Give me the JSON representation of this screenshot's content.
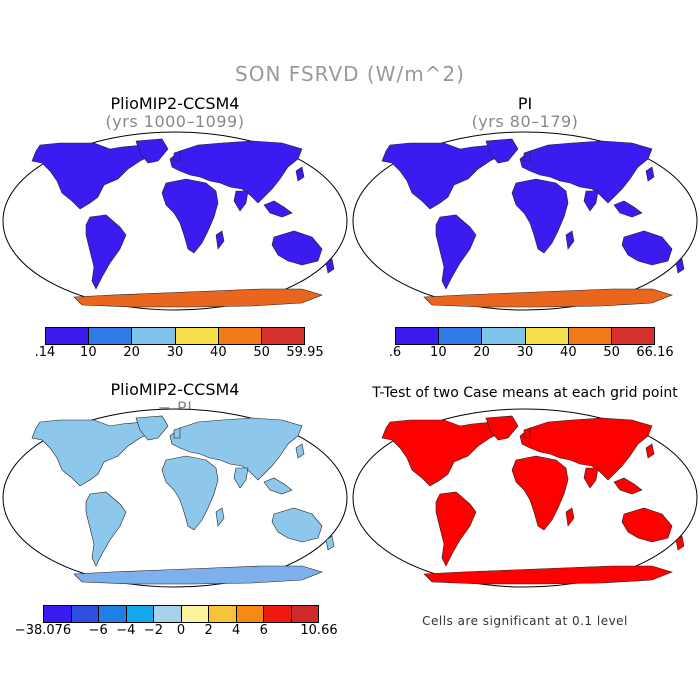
{
  "figure": {
    "title": "SON FSRVD (W/m^2)"
  },
  "panels": [
    {
      "title": "PlioMIP2-CCSM4",
      "subtitle": "(yrs 1000–1099)",
      "land_color": "#3b1cf0",
      "antarctic_color": "#e8661e",
      "colorbar": {
        "colors": [
          "#3b1cf0",
          "#2f7be8",
          "#7fc2ea",
          "#f7e04b",
          "#f07c18",
          "#d6322a"
        ],
        "ticks": [
          ".14",
          "10",
          "20",
          "30",
          "40",
          "50",
          "59.95"
        ]
      }
    },
    {
      "title": "PI",
      "subtitle": "(yrs 80–179)",
      "land_color": "#3b1cf0",
      "antarctic_color": "#e8661e",
      "colorbar": {
        "colors": [
          "#3b1cf0",
          "#2f7be8",
          "#7fc2ea",
          "#f7e04b",
          "#f07c18",
          "#d6322a"
        ],
        "ticks": [
          ".6",
          "10",
          "20",
          "30",
          "40",
          "50",
          "66.16"
        ]
      }
    },
    {
      "title": "PlioMIP2-CCSM4",
      "subtitle": "− PI",
      "land_color": "#8ec7ec",
      "antarctic_color": "#7fb0ee",
      "colorbar": {
        "colors": [
          "#3b1cf0",
          "#2e4fe0",
          "#1f7fe6",
          "#16a8ee",
          "#a6d2ee",
          "#faf59a",
          "#f8c23a",
          "#f68a15",
          "#ee1a10",
          "#cf2a2a"
        ],
        "ticks": [
          "−38.076",
          "−6",
          "−4",
          "−2",
          "0",
          "2",
          "4",
          "6",
          "10.66"
        ]
      }
    },
    {
      "title": "T-Test of two Case means at each grid point",
      "land_color": "#ff0000",
      "antarctic_color": "#ff0000",
      "footnote": "Cells are significant at 0.1 level"
    }
  ]
}
